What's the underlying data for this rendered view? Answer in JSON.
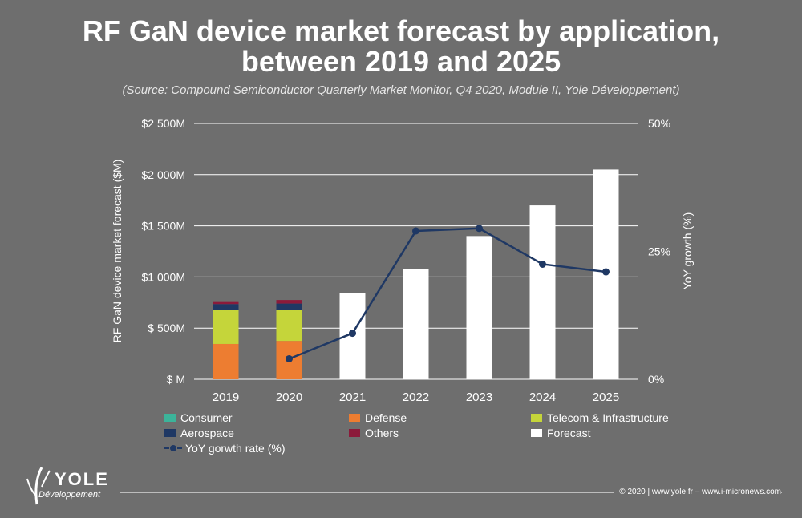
{
  "title_line1": "RF GaN device market forecast by application,",
  "title_line2": "between 2019 and 2025",
  "subtitle": "(Source: Compound Semiconductor Quarterly Market Monitor, Q4 2020, Module II, Yole Développement)",
  "chart_data": {
    "type": "bar",
    "categories": [
      "2019",
      "2020",
      "2021",
      "2022",
      "2023",
      "2024",
      "2025"
    ],
    "stacked_series": [
      {
        "name": "Consumer",
        "color": "#3cb49a",
        "values": [
          0,
          0,
          null,
          null,
          null,
          null,
          null
        ]
      },
      {
        "name": "Defense",
        "color": "#ed7d31",
        "values": [
          345,
          375,
          null,
          null,
          null,
          null,
          null
        ]
      },
      {
        "name": "Telecom & Infrastructure",
        "color": "#c5d53a",
        "values": [
          335,
          305,
          null,
          null,
          null,
          null,
          null
        ]
      },
      {
        "name": "Aerospace",
        "color": "#1f3864",
        "values": [
          55,
          60,
          null,
          null,
          null,
          null,
          null
        ]
      },
      {
        "name": "Others",
        "color": "#8b1a3a",
        "values": [
          20,
          35,
          null,
          null,
          null,
          null,
          null
        ]
      }
    ],
    "forecast": {
      "name": "Forecast",
      "color": "#ffffff",
      "values": [
        null,
        null,
        840,
        1080,
        1400,
        1700,
        2050
      ]
    },
    "line_series": {
      "name": "YoY gorwth rate (%)",
      "color": "#1f3864",
      "values": [
        null,
        4,
        9,
        29,
        29.5,
        22.5,
        21
      ]
    },
    "ylabel": "RF GaN device market forecast ($M)",
    "y2label": "YoY growth (%)",
    "ylim": [
      0,
      2500
    ],
    "y2lim": [
      0,
      50
    ],
    "yticks": [
      0,
      500,
      1000,
      1500,
      2000,
      2500
    ],
    "ytick_labels": [
      "$ M",
      "$ 500M",
      "$1 000M",
      "$1 500M",
      "$2 000M",
      "$2 500M"
    ],
    "y2ticks": [
      0,
      25,
      50
    ],
    "y2tick_labels": [
      "0%",
      "25%",
      "50%"
    ],
    "grid": "horizontal"
  },
  "legend": {
    "consumer": "Consumer",
    "defense": "Defense",
    "telecom": "Telecom & Infrastructure",
    "aerospace": "Aerospace",
    "others": "Others",
    "forecast": "Forecast",
    "yoy": "YoY gorwth rate (%)"
  },
  "footer": {
    "copyright": "© 2020 | www.yole.fr – www.i-micronews.com",
    "logo_word": "YOLE",
    "logo_sub": "Développement"
  }
}
